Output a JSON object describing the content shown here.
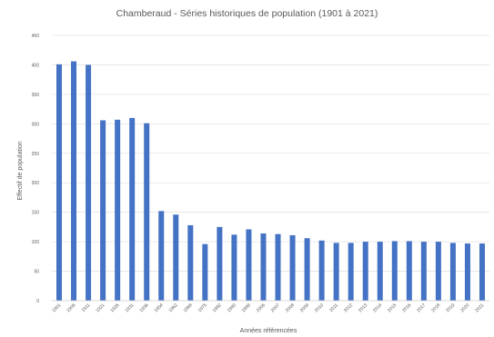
{
  "chart_data": {
    "type": "bar",
    "title": "Chamberaud - Séries historiques de population (1901 à 2021)",
    "xlabel": "Années référencées",
    "ylabel": "Effectif de population",
    "ylim": [
      0,
      450
    ],
    "yticks": [
      0,
      50,
      100,
      150,
      200,
      250,
      300,
      350,
      400,
      450
    ],
    "grid": true,
    "legend": "none",
    "bar_color": "#4472c4",
    "categories": [
      "1901",
      "1906",
      "1911",
      "1921",
      "1926",
      "1931",
      "1936",
      "1954",
      "1962",
      "1968",
      "1975",
      "1982",
      "1990",
      "1999",
      "2006",
      "2007",
      "2008",
      "2009",
      "2010",
      "2011",
      "2012",
      "2013",
      "2014",
      "2015",
      "2016",
      "2017",
      "2018",
      "2019",
      "2020",
      "2021"
    ],
    "values": [
      401,
      406,
      400,
      306,
      307,
      310,
      301,
      152,
      146,
      128,
      96,
      125,
      112,
      121,
      114,
      113,
      111,
      106,
      102,
      98,
      98,
      100,
      100,
      101,
      101,
      100,
      100,
      98,
      97,
      97
    ]
  }
}
